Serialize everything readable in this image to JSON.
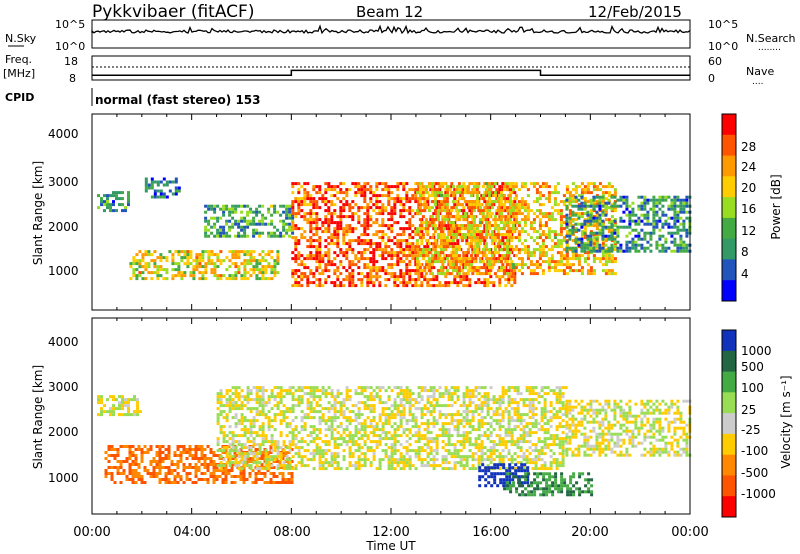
{
  "header": {
    "radar": "Pykkvibaer (fitACF)",
    "beam": "Beam 12",
    "date": "12/Feb/2015"
  },
  "sky_panel": {
    "left_label": "N.Sky",
    "left_ticks": [
      "10^5",
      "10^0"
    ],
    "right_ticks": [
      "10^5",
      "10^0"
    ],
    "right_label": "N.Search",
    "right_legend_line": "........"
  },
  "freq_panel": {
    "left_label_1": "Freq.",
    "left_label_2": "[MHz]",
    "left_ticks": [
      "18",
      "8"
    ],
    "right_ticks": [
      "60",
      "0"
    ],
    "right_label": "Nave",
    "right_legend_line": "...."
  },
  "cpid": {
    "label": "CPID",
    "text": "normal (fast stereo) 153"
  },
  "power_panel": {
    "ylabel": "Slant Range [km]",
    "yticks": [
      "4000",
      "3000",
      "2000",
      "1000"
    ],
    "colorbar_label": "Power [dB]",
    "colorbar_ticks": [
      "28",
      "24",
      "20",
      "16",
      "12",
      "8",
      "4"
    ],
    "colorbar_colors": [
      "#ff0000",
      "#ff5500",
      "#ff9900",
      "#ffcc00",
      "#99dd22",
      "#44aa44",
      "#339966",
      "#2255bb",
      "#0000ff"
    ]
  },
  "velocity_panel": {
    "ylabel": "Slant Range [km]",
    "yticks": [
      "4000",
      "3000",
      "2000",
      "1000"
    ],
    "colorbar_label": "Velocity [m s⁻¹]",
    "colorbar_ticks": [
      "1000",
      "500",
      "100",
      "25",
      "-25",
      "-100",
      "-500",
      "-1000"
    ],
    "colorbar_colors": [
      "#1133bb",
      "#226644",
      "#44aa44",
      "#99dd55",
      "#cccccc",
      "#ffcc00",
      "#ff8800",
      "#ff5500",
      "#ff0000"
    ]
  },
  "x_axis": {
    "ticks": [
      "00:00",
      "04:00",
      "08:00",
      "12:00",
      "16:00",
      "20:00",
      "00:00"
    ],
    "label": "Time UT"
  },
  "chart_data": {
    "type": "heatmap",
    "title": "Pykkvibaer (fitACF)  Beam 12  12/Feb/2015",
    "xlabel": "Time UT",
    "ylabel": "Slant Range [km]",
    "x_range_hours": [
      0,
      24
    ],
    "y_range_km": [
      180,
      4500
    ],
    "freq_mhz": [
      {
        "start_h": 0,
        "end_h": 8,
        "value": 10
      },
      {
        "start_h": 8,
        "end_h": 18,
        "value": 12
      },
      {
        "start_h": 18,
        "end_h": 24,
        "value": 10
      }
    ],
    "panels": [
      {
        "name": "Power [dB]",
        "scale": [
          0,
          30
        ],
        "echo_regions": [
          {
            "t_start": 0.2,
            "t_end": 1.5,
            "r_start": 2400,
            "r_end": 2800,
            "level": 8
          },
          {
            "t_start": 1.5,
            "t_end": 7.5,
            "r_start": 900,
            "r_end": 1500,
            "level": 18
          },
          {
            "t_start": 2.0,
            "t_end": 3.5,
            "r_start": 2700,
            "r_end": 3100,
            "level": 6
          },
          {
            "t_start": 4.5,
            "t_end": 8.0,
            "r_start": 1800,
            "r_end": 2500,
            "level": 10
          },
          {
            "t_start": 8.0,
            "t_end": 17.0,
            "r_start": 700,
            "r_end": 3000,
            "level": 26
          },
          {
            "t_start": 13.0,
            "t_end": 21.0,
            "r_start": 1000,
            "r_end": 3000,
            "level": 20
          },
          {
            "t_start": 19.0,
            "t_end": 24.0,
            "r_start": 1500,
            "r_end": 2700,
            "level": 8
          }
        ]
      },
      {
        "name": "Velocity [m s-1]",
        "scale": [
          -1000,
          1000
        ],
        "echo_regions": [
          {
            "t_start": 0.2,
            "t_end": 2.0,
            "r_start": 2400,
            "r_end": 2800,
            "level": 0
          },
          {
            "t_start": 0.5,
            "t_end": 8.0,
            "r_start": 900,
            "r_end": 1700,
            "level": -300
          },
          {
            "t_start": 5.0,
            "t_end": 19.0,
            "r_start": 1200,
            "r_end": 3000,
            "level": 0
          },
          {
            "t_start": 15.5,
            "t_end": 17.5,
            "r_start": 800,
            "r_end": 1300,
            "level": 800
          },
          {
            "t_start": 16.5,
            "t_end": 20.0,
            "r_start": 600,
            "r_end": 1100,
            "level": 300
          },
          {
            "t_start": 19.0,
            "t_end": 24.0,
            "r_start": 1500,
            "r_end": 2700,
            "level": 0
          }
        ]
      }
    ]
  }
}
